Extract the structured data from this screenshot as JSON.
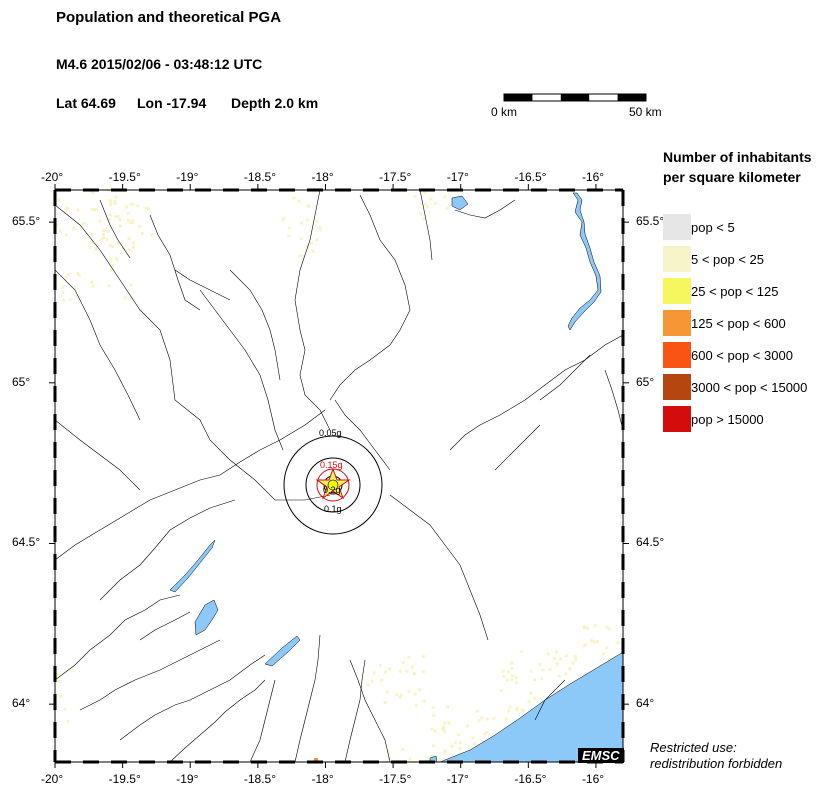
{
  "header": {
    "title": "Population and theoretical PGA",
    "event_line": "M4.6  2015/02/06 - 03:48:12 UTC",
    "lat_label": "Lat 64.69",
    "lon_label": "Lon -17.94",
    "depth_label": "Depth  2.0 km"
  },
  "scale_bar": {
    "left_label": "0 km",
    "right_label": "50 km"
  },
  "map": {
    "lon_ticks": [
      "-20°",
      "-19.5°",
      "-19°",
      "-18.5°",
      "-18°",
      "-17.5°",
      "-17°",
      "-16.5°",
      "-16°"
    ],
    "lat_ticks": [
      "65.5°",
      "65°",
      "64.5°",
      "64°"
    ],
    "epicenter": {
      "lat": 64.69,
      "lon": -17.94
    },
    "pga_rings": [
      "0.05g",
      "0.15g",
      "0.2g",
      "0.1g"
    ],
    "water_color": "#8cc8f8",
    "watermark": "EMSC"
  },
  "legend": {
    "title_line1": "Number of inhabitants",
    "title_line2": "per square kilometer",
    "items": [
      {
        "label": "pop < 5",
        "color": "#e6e6e6"
      },
      {
        "label": "5 < pop < 25",
        "color": "#f7f5c8"
      },
      {
        "label": "25 < pop < 125",
        "color": "#f6f65e"
      },
      {
        "label": "125 < pop < 600",
        "color": "#f69634"
      },
      {
        "label": "600 < pop < 3000",
        "color": "#f95414"
      },
      {
        "label": "3000 < pop < 15000",
        "color": "#b5460f"
      },
      {
        "label": "pop > 15000",
        "color": "#d40c0c"
      }
    ]
  },
  "restriction": {
    "line1": "Restricted use:",
    "line2": "redistribution forbidden"
  }
}
